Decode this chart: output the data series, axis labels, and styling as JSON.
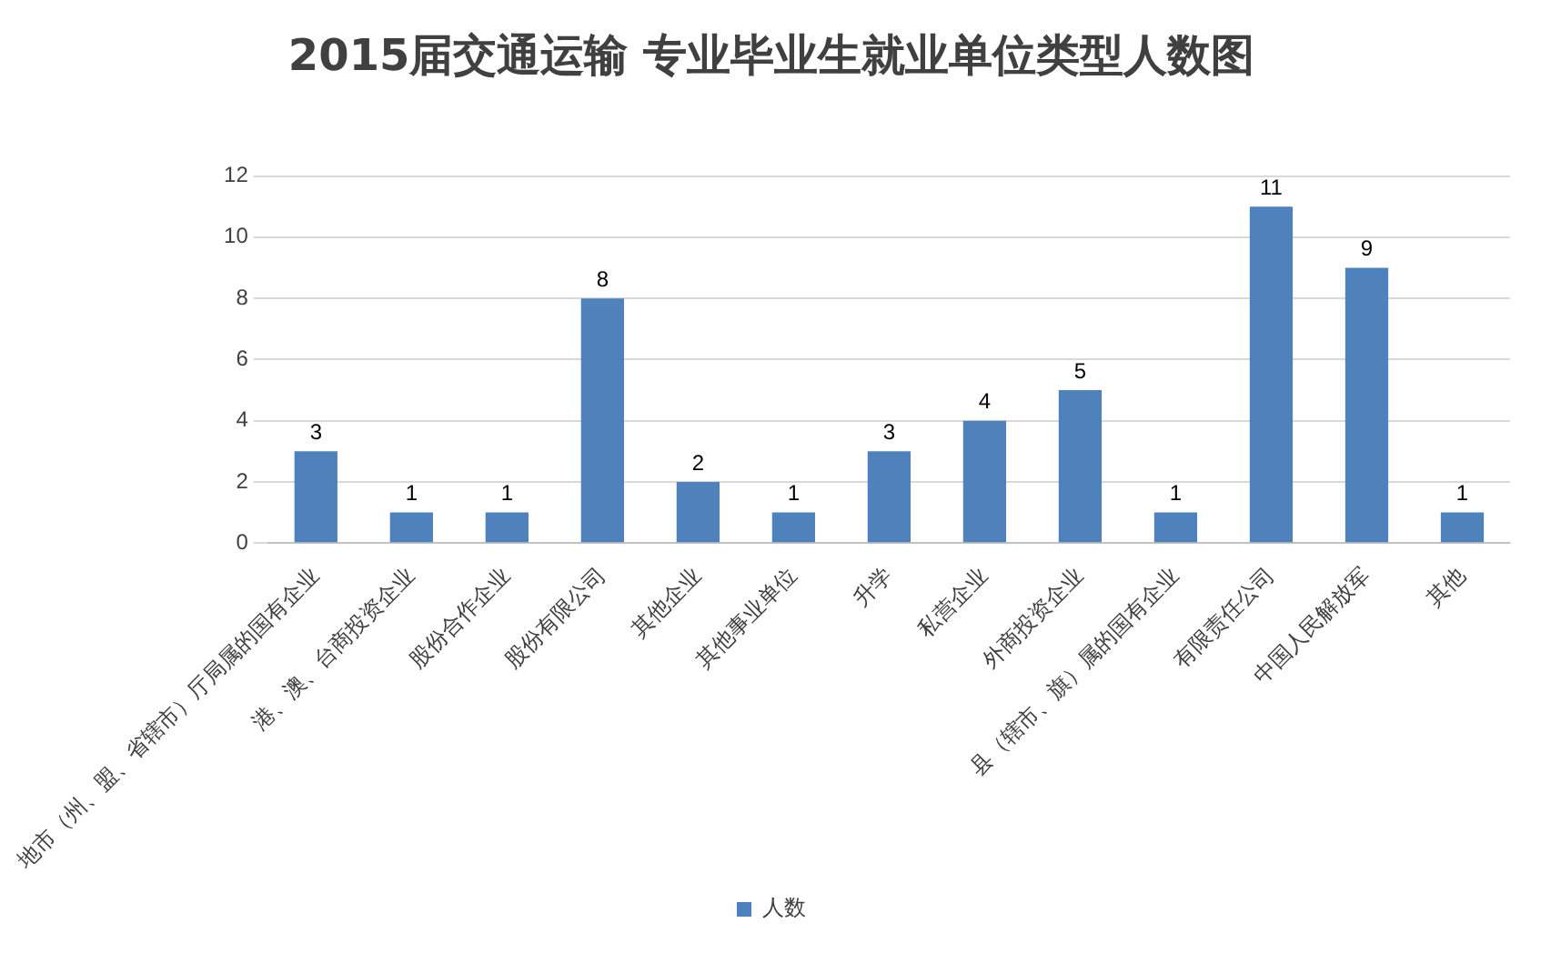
{
  "chart_data": {
    "type": "bar",
    "title": "2015届交通运输 专业毕业生就业单位类型人数图",
    "categories": [
      "地市（州、盟、省辖市）厅局属的国有企业",
      "港、澳、台商投资企业",
      "股份合作企业",
      "股份有限公司",
      "其他企业",
      "其他事业单位",
      "升学",
      "私营企业",
      "外商投资企业",
      "县（辖市、旗）属的国有企业",
      "有限责任公司",
      "中国人民解放军",
      "其他"
    ],
    "series": [
      {
        "name": "人数",
        "color": "#4f81bd",
        "values": [
          3,
          1,
          1,
          8,
          2,
          1,
          3,
          4,
          5,
          1,
          11,
          9,
          1
        ]
      }
    ],
    "ylim": [
      0,
      12
    ],
    "yticks": [
      0,
      2,
      4,
      6,
      8,
      10,
      12
    ],
    "grid": "y",
    "legend": "bottom",
    "data_labels": true
  }
}
